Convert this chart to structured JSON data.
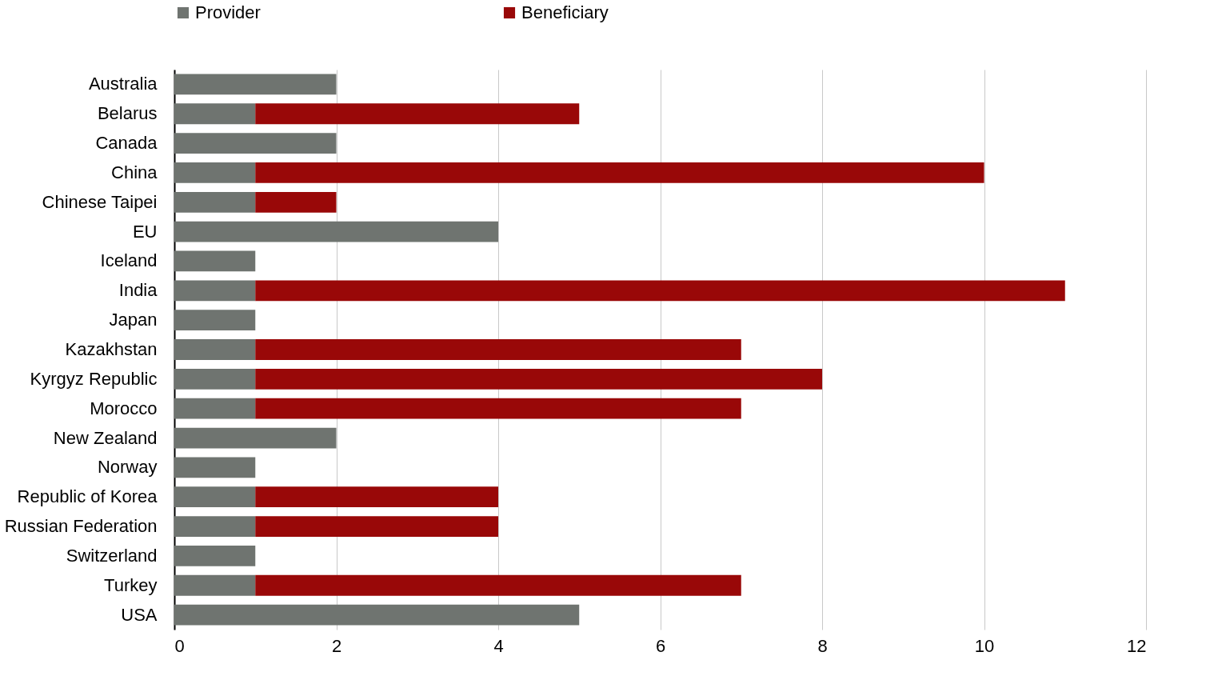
{
  "chart_data": {
    "type": "bar",
    "orientation": "horizontal",
    "stacked": true,
    "categories": [
      "Australia",
      "Belarus",
      "Canada",
      "China",
      "Chinese Taipei",
      "EU",
      "Iceland",
      "India",
      "Japan",
      "Kazakhstan",
      "Kyrgyz Republic",
      "Morocco",
      "New Zealand",
      "Norway",
      "Republic of Korea",
      "Russian Federation",
      "Switzerland",
      "Turkey",
      "USA"
    ],
    "series": [
      {
        "name": "Provider",
        "color": "#6f7470",
        "values": [
          2,
          1,
          2,
          1,
          1,
          4,
          1,
          1,
          1,
          1,
          1,
          1,
          2,
          1,
          1,
          1,
          1,
          1,
          5
        ]
      },
      {
        "name": "Beneficiary",
        "color": "#990808",
        "values": [
          null,
          4,
          null,
          9,
          1,
          null,
          null,
          10,
          null,
          6,
          7,
          6,
          null,
          null,
          3,
          3,
          null,
          6,
          null
        ]
      }
    ],
    "xlim": [
      0,
      12
    ],
    "xticks": [
      0,
      2,
      4,
      6,
      8,
      10,
      12
    ],
    "grid": "x",
    "legend": "top"
  }
}
